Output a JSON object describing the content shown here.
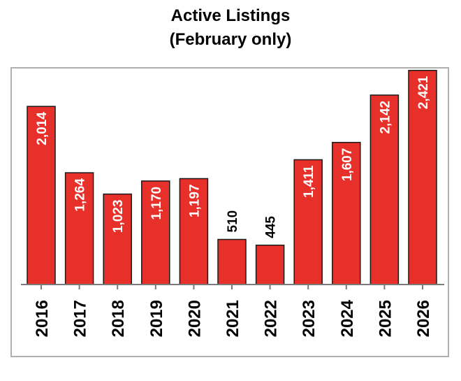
{
  "title_line1": "Active Listings",
  "title_line2": "(February only)",
  "chart_data": {
    "type": "bar",
    "title": "Active Listings (February only)",
    "categories": [
      "2016",
      "2017",
      "2018",
      "2019",
      "2020",
      "2021",
      "2022",
      "2023",
      "2024",
      "2025",
      "2026"
    ],
    "values": [
      2014,
      1264,
      1023,
      1170,
      1197,
      510,
      445,
      1411,
      1607,
      2142,
      2421
    ],
    "value_labels": [
      "2,014",
      "1,264",
      "1,023",
      "1,170",
      "1,197",
      "510",
      "445",
      "1,411",
      "1,607",
      "2,142",
      "2,421"
    ],
    "ylim": [
      0,
      2600
    ],
    "xlabel": "",
    "ylabel": "",
    "grid": false,
    "bar_color": "#e8302a",
    "bar_outline_color": "#1a1a1a",
    "frame_color": "#b0b0b0"
  }
}
